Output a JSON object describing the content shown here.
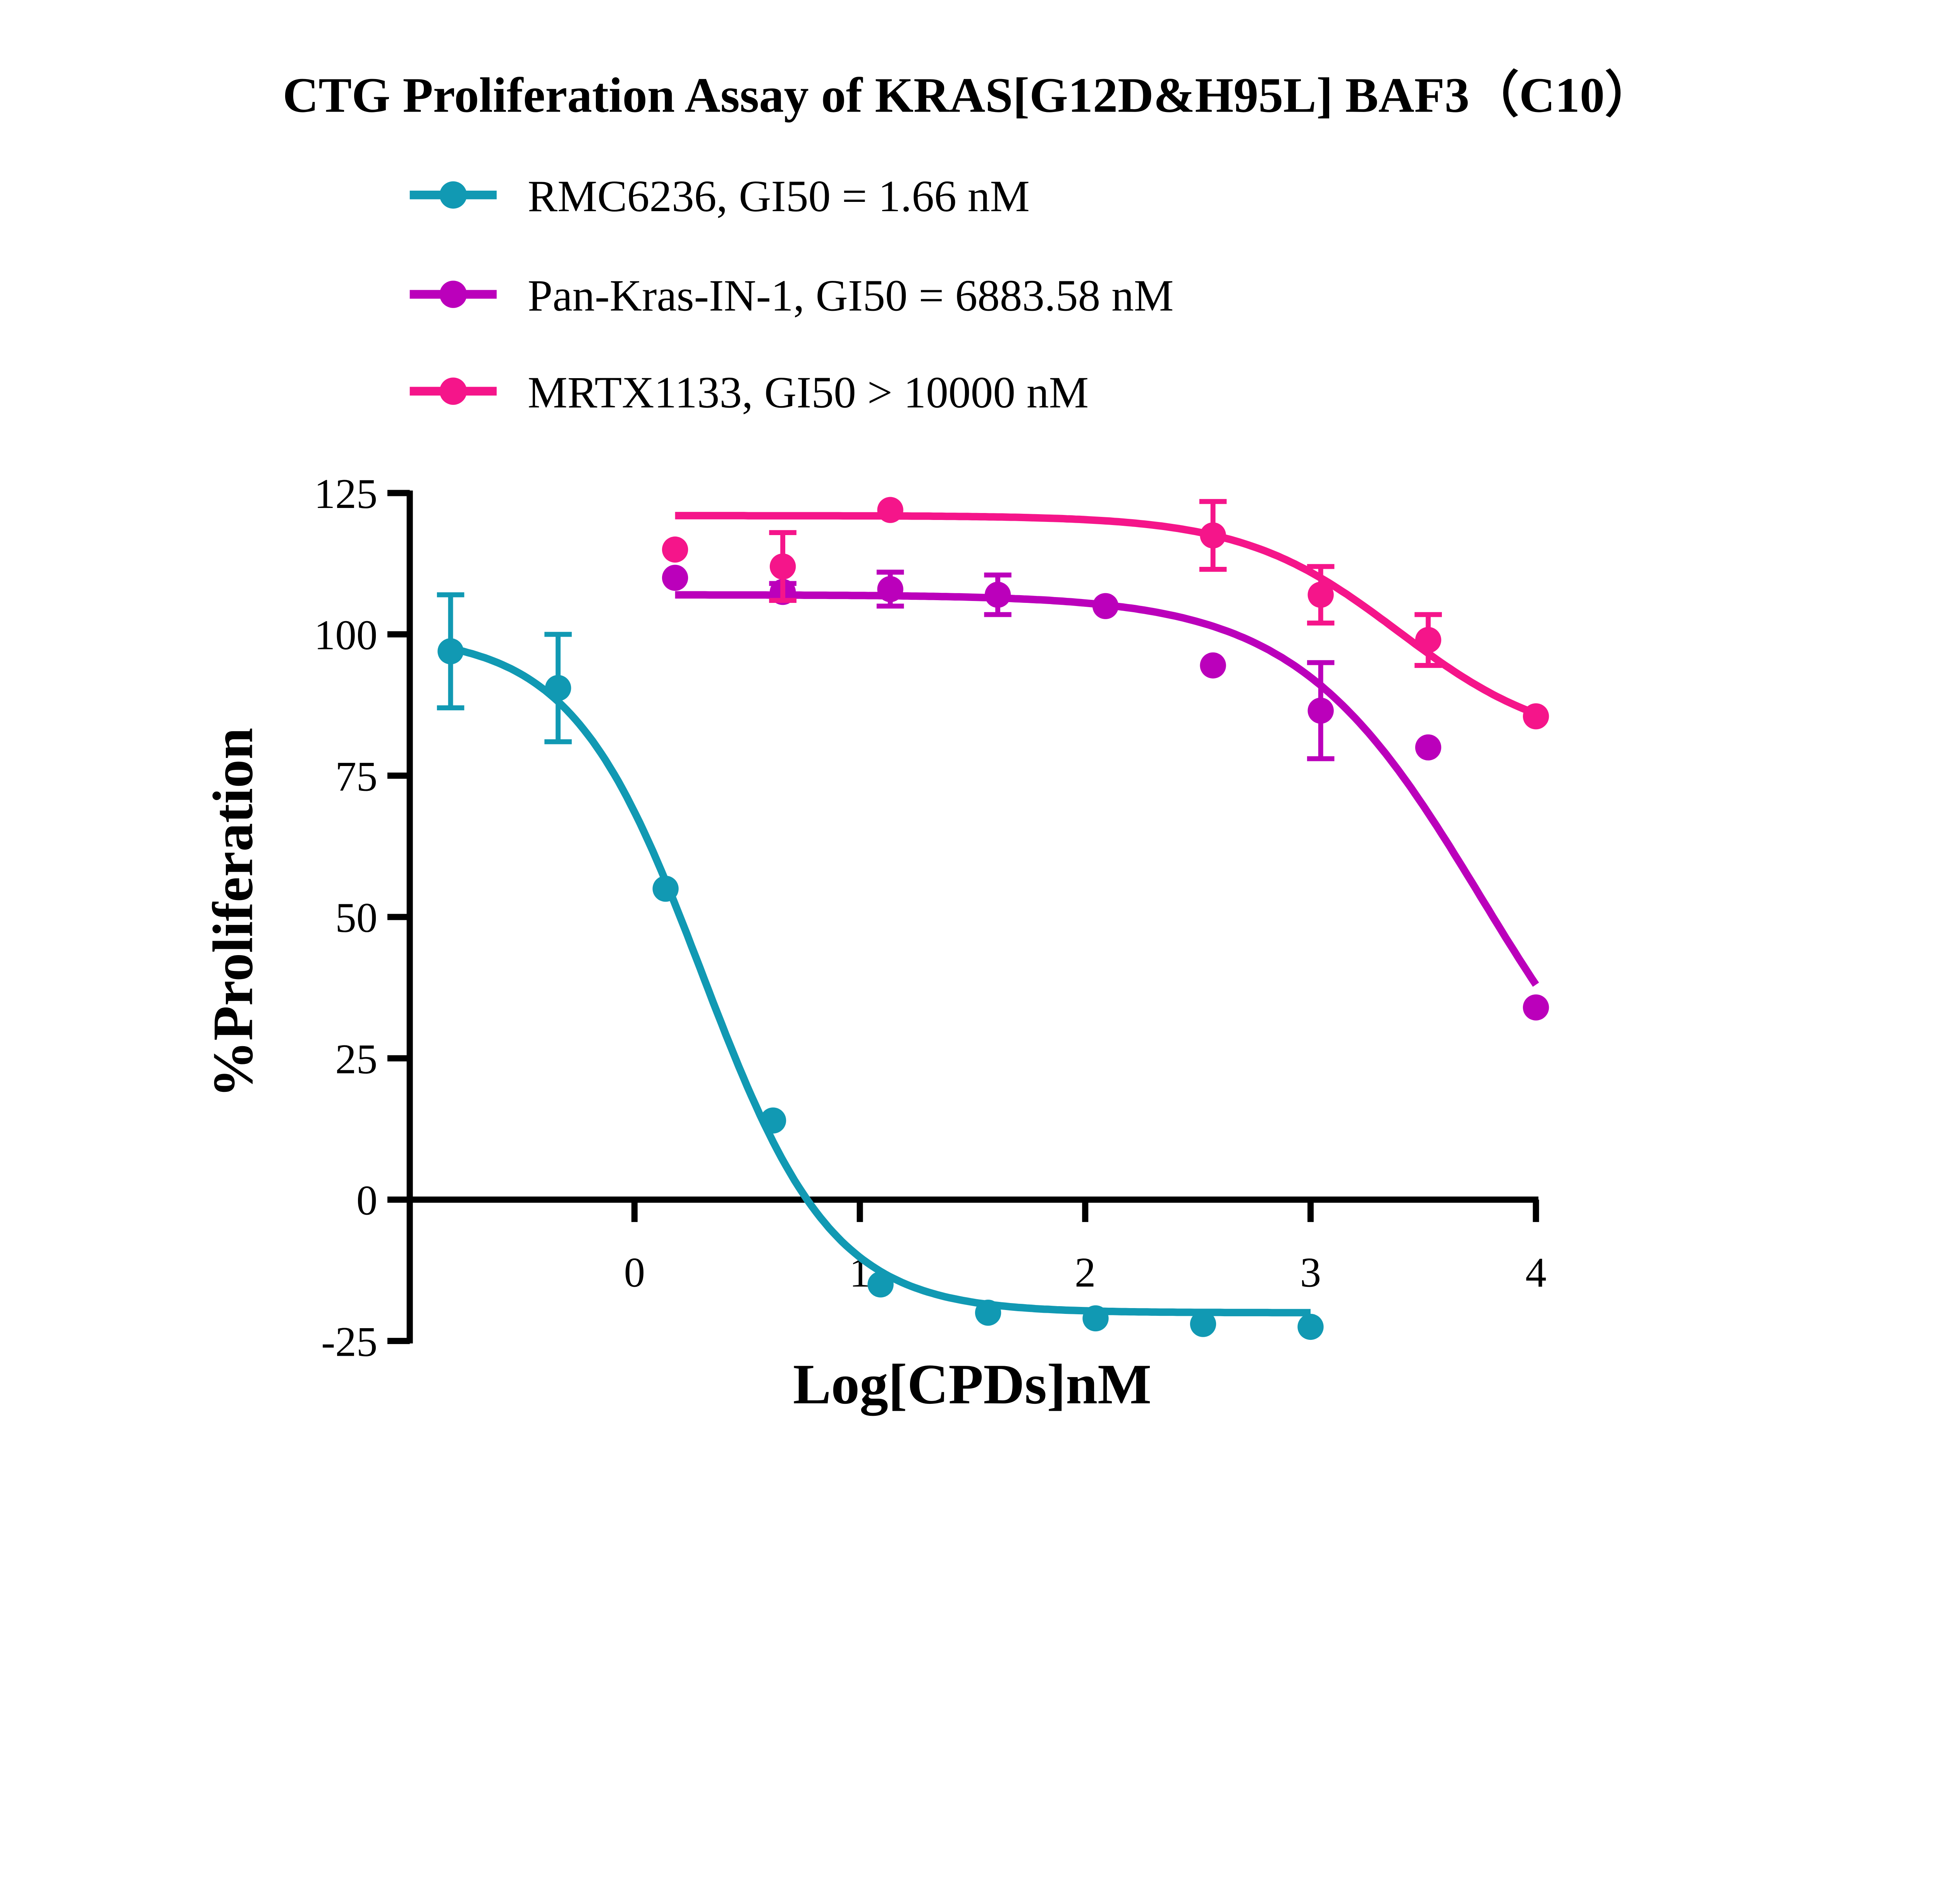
{
  "chart_data": {
    "type": "scatter",
    "title": "CTG Proliferation Assay of KRAS[G12D&H95L] BAF3（C10）",
    "xlabel": "Log[CPDs]nM",
    "ylabel": "%Proliferation",
    "xlim": [
      -1,
      4
    ],
    "ylim": [
      -25,
      125
    ],
    "xticks": [
      "0",
      "1",
      "2",
      "3",
      "4"
    ],
    "yticks": [
      "-25",
      "0",
      "25",
      "50",
      "75",
      "100",
      "125"
    ],
    "grid": false,
    "legend_position": "top",
    "series": [
      {
        "name": "RMC6236, GI50 = 1.66 nM",
        "color": "#1199b3",
        "x": [
          -0.816,
          -0.339,
          0.138,
          0.615,
          1.092,
          1.569,
          2.046,
          2.523,
          3.0
        ],
        "y": [
          97,
          90.5,
          55,
          14,
          -15,
          -20,
          -21,
          -22,
          -22.5
        ],
        "err": [
          10,
          9.5,
          0,
          0,
          0,
          0,
          0,
          0,
          0
        ],
        "fit": {
          "top": 100,
          "bottom": -20,
          "logGI50": 0.3,
          "hill": 1.5,
          "range": [
            -0.816,
            3.0
          ]
        }
      },
      {
        "name": "Pan-Kras-IN-1, GI50 = 6883.58 nM",
        "color": "#bb00bb",
        "x": [
          0.18,
          0.658,
          1.135,
          1.612,
          2.09,
          2.567,
          3.045,
          3.522,
          4.0
        ],
        "y": [
          110,
          107.5,
          108,
          107,
          105,
          94.5,
          86.5,
          80,
          34
        ],
        "err": [
          0,
          1.5,
          3,
          3.5,
          0,
          0,
          8.5,
          0,
          0
        ],
        "fit": {
          "top": 107,
          "bottom": 0,
          "logGI50": 3.756,
          "hill": 1.06,
          "range": [
            0.18,
            4.0
          ]
        }
      },
      {
        "name": "MRTX1133, GI50 > 10000 nM",
        "color": "#f5158a",
        "x": [
          0.18,
          0.658,
          1.135,
          2.567,
          3.045,
          3.522,
          4.0
        ],
        "y": [
          115,
          112,
          122,
          117.5,
          107,
          99,
          85.5
        ],
        "err": [
          0,
          6,
          0,
          6,
          5,
          4.5,
          0
        ],
        "fit": {
          "top": 121,
          "bottom": 80,
          "logGI50": 3.39,
          "hill": 1.26,
          "range": [
            0.18,
            4.0
          ]
        }
      }
    ]
  }
}
